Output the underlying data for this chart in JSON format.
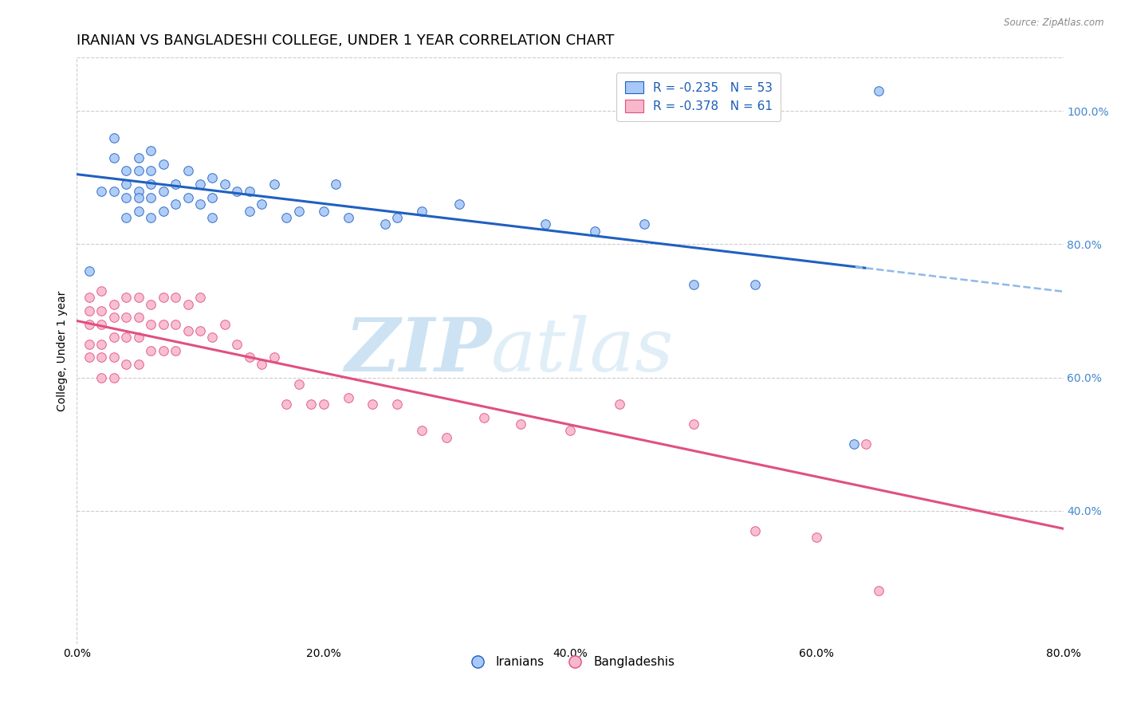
{
  "title": "IRANIAN VS BANGLADESHI COLLEGE, UNDER 1 YEAR CORRELATION CHART",
  "source": "Source: ZipAtlas.com",
  "ylabel": "College, Under 1 year",
  "x_tick_labels": [
    "0.0%",
    "20.0%",
    "40.0%",
    "60.0%",
    "80.0%"
  ],
  "x_tick_positions": [
    0.0,
    0.2,
    0.4,
    0.6,
    0.8
  ],
  "y_tick_labels_right": [
    "100.0%",
    "80.0%",
    "60.0%",
    "40.0%"
  ],
  "y_tick_positions_right": [
    1.0,
    0.8,
    0.6,
    0.4
  ],
  "xlim": [
    0.0,
    0.8
  ],
  "ylim": [
    0.2,
    1.08
  ],
  "legend_labels": [
    "Iranians",
    "Bangladeshis"
  ],
  "legend_R": [
    "R = -0.235",
    "R = -0.378"
  ],
  "legend_N": [
    "N = 53",
    "N = 61"
  ],
  "scatter_color_iranian": "#a8c8f8",
  "scatter_color_bangladeshi": "#f8b8cc",
  "line_color_iranian": "#2060c0",
  "line_color_bangladeshi": "#e05080",
  "line_color_iranian_dashed": "#90b8e8",
  "watermark_zip": "ZIP",
  "watermark_atlas": "atlas",
  "background_color": "#ffffff",
  "grid_color": "#cccccc",
  "iranians_x": [
    0.01,
    0.02,
    0.03,
    0.03,
    0.03,
    0.04,
    0.04,
    0.04,
    0.04,
    0.05,
    0.05,
    0.05,
    0.05,
    0.05,
    0.06,
    0.06,
    0.06,
    0.06,
    0.06,
    0.07,
    0.07,
    0.07,
    0.08,
    0.08,
    0.09,
    0.09,
    0.1,
    0.1,
    0.11,
    0.11,
    0.11,
    0.12,
    0.13,
    0.14,
    0.14,
    0.15,
    0.16,
    0.17,
    0.18,
    0.2,
    0.21,
    0.22,
    0.25,
    0.26,
    0.28,
    0.31,
    0.38,
    0.42,
    0.46,
    0.5,
    0.55,
    0.63,
    0.65
  ],
  "iranians_y": [
    0.76,
    0.88,
    0.93,
    0.96,
    0.88,
    0.91,
    0.89,
    0.87,
    0.84,
    0.93,
    0.91,
    0.88,
    0.87,
    0.85,
    0.94,
    0.91,
    0.89,
    0.87,
    0.84,
    0.92,
    0.88,
    0.85,
    0.89,
    0.86,
    0.91,
    0.87,
    0.89,
    0.86,
    0.9,
    0.87,
    0.84,
    0.89,
    0.88,
    0.88,
    0.85,
    0.86,
    0.89,
    0.84,
    0.85,
    0.85,
    0.89,
    0.84,
    0.83,
    0.84,
    0.85,
    0.86,
    0.83,
    0.82,
    0.83,
    0.74,
    0.74,
    0.5,
    1.03
  ],
  "bangladeshis_x": [
    0.01,
    0.01,
    0.01,
    0.01,
    0.01,
    0.02,
    0.02,
    0.02,
    0.02,
    0.02,
    0.02,
    0.03,
    0.03,
    0.03,
    0.03,
    0.03,
    0.04,
    0.04,
    0.04,
    0.04,
    0.05,
    0.05,
    0.05,
    0.05,
    0.06,
    0.06,
    0.06,
    0.07,
    0.07,
    0.07,
    0.08,
    0.08,
    0.08,
    0.09,
    0.09,
    0.1,
    0.1,
    0.11,
    0.12,
    0.13,
    0.14,
    0.15,
    0.16,
    0.17,
    0.18,
    0.19,
    0.2,
    0.22,
    0.24,
    0.26,
    0.28,
    0.3,
    0.33,
    0.36,
    0.4,
    0.44,
    0.5,
    0.55,
    0.6,
    0.64,
    0.65
  ],
  "bangladeshis_y": [
    0.72,
    0.7,
    0.68,
    0.65,
    0.63,
    0.73,
    0.7,
    0.68,
    0.65,
    0.63,
    0.6,
    0.71,
    0.69,
    0.66,
    0.63,
    0.6,
    0.72,
    0.69,
    0.66,
    0.62,
    0.72,
    0.69,
    0.66,
    0.62,
    0.71,
    0.68,
    0.64,
    0.72,
    0.68,
    0.64,
    0.72,
    0.68,
    0.64,
    0.71,
    0.67,
    0.72,
    0.67,
    0.66,
    0.68,
    0.65,
    0.63,
    0.62,
    0.63,
    0.56,
    0.59,
    0.56,
    0.56,
    0.57,
    0.56,
    0.56,
    0.52,
    0.51,
    0.54,
    0.53,
    0.52,
    0.56,
    0.53,
    0.37,
    0.36,
    0.5,
    0.28
  ],
  "title_fontsize": 13,
  "axis_label_fontsize": 10,
  "tick_fontsize": 10,
  "legend_fontsize": 11
}
